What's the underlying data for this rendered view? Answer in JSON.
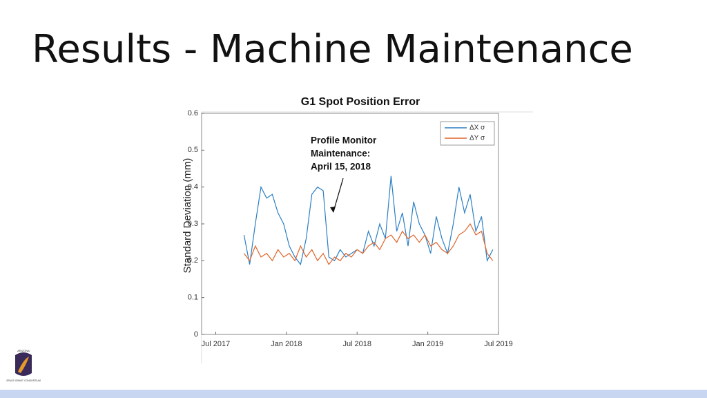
{
  "slide_title": "Results - Machine Maintenance",
  "logo_text": [
    "ARIZONA",
    "SPACE GRANT CONSORTIUM"
  ],
  "chart_data": {
    "type": "line",
    "title": "G1 Spot Position Error",
    "y_label": "Standard Deviation (mm)",
    "annotation": [
      "Profile Monitor",
      "Maintenance:",
      "April 15, 2018"
    ],
    "x": [
      2017.7,
      2017.74,
      2017.78,
      2017.82,
      2017.86,
      2017.9,
      2017.94,
      2017.98,
      2018.02,
      2018.06,
      2018.1,
      2018.14,
      2018.18,
      2018.22,
      2018.26,
      2018.3,
      2018.34,
      2018.38,
      2018.42,
      2018.46,
      2018.5,
      2018.54,
      2018.58,
      2018.62,
      2018.66,
      2018.7,
      2018.74,
      2018.78,
      2018.82,
      2018.86,
      2018.9,
      2018.94,
      2018.98,
      2019.02,
      2019.06,
      2019.1,
      2019.14,
      2019.18,
      2019.22,
      2019.26,
      2019.3,
      2019.34,
      2019.38,
      2019.42,
      2019.46
    ],
    "series": [
      {
        "name": "ΔX σ",
        "color": "#2a7fc4",
        "values": [
          0.27,
          0.19,
          0.3,
          0.4,
          0.37,
          0.38,
          0.33,
          0.3,
          0.24,
          0.21,
          0.19,
          0.26,
          0.38,
          0.4,
          0.39,
          0.21,
          0.2,
          0.23,
          0.21,
          0.22,
          0.23,
          0.22,
          0.28,
          0.24,
          0.3,
          0.26,
          0.43,
          0.28,
          0.33,
          0.24,
          0.36,
          0.3,
          0.27,
          0.22,
          0.32,
          0.26,
          0.22,
          0.3,
          0.4,
          0.33,
          0.38,
          0.28,
          0.32,
          0.2,
          0.23
        ]
      },
      {
        "name": "ΔY σ",
        "color": "#e0642a",
        "values": [
          0.22,
          0.2,
          0.24,
          0.21,
          0.22,
          0.2,
          0.23,
          0.21,
          0.22,
          0.2,
          0.24,
          0.21,
          0.23,
          0.2,
          0.22,
          0.19,
          0.21,
          0.2,
          0.22,
          0.21,
          0.23,
          0.22,
          0.24,
          0.25,
          0.23,
          0.26,
          0.27,
          0.25,
          0.28,
          0.26,
          0.27,
          0.25,
          0.27,
          0.24,
          0.25,
          0.23,
          0.22,
          0.24,
          0.27,
          0.28,
          0.3,
          0.27,
          0.28,
          0.22,
          0.2
        ]
      }
    ],
    "xlim": [
      2017.4,
      2019.5
    ],
    "xticks": [
      {
        "value": 2017.5,
        "label": "Jul 2017"
      },
      {
        "value": 2018.0,
        "label": "Jan 2018"
      },
      {
        "value": 2018.5,
        "label": "Jul 2018"
      },
      {
        "value": 2019.0,
        "label": "Jan 2019"
      },
      {
        "value": 2019.5,
        "label": "Jul 2019"
      }
    ],
    "ylim": [
      0,
      0.6
    ],
    "yticks": [
      0,
      0.1,
      0.2,
      0.3,
      0.4,
      0.5,
      0.6
    ],
    "grid": false,
    "legend": "upper right"
  }
}
